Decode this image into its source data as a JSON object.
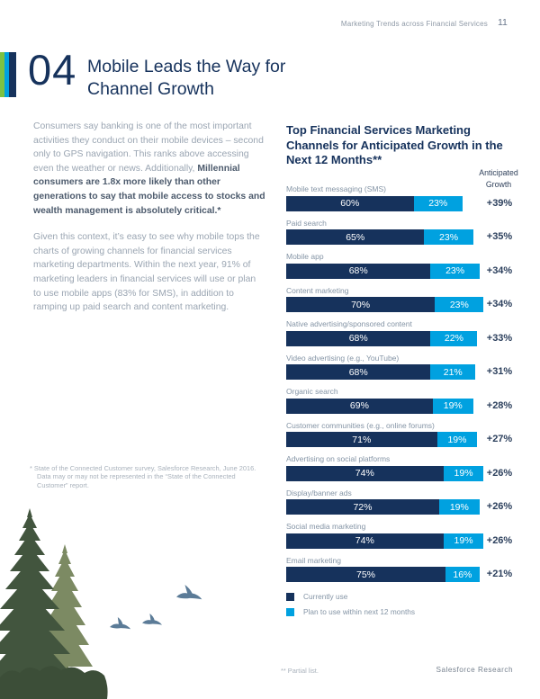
{
  "header": {
    "title": "Marketing Trends across Financial Services",
    "page_number": "11"
  },
  "section": {
    "number": "04",
    "title_line1": "Mobile Leads the Way for",
    "title_line2": "Channel Growth"
  },
  "body": {
    "p1_normal": "Consumers say banking is one of the most important activities they conduct on their mobile devices – second only to GPS navigation. This ranks above accessing even the weather or news. Additionally, ",
    "p1_bold": "Millennial consumers are 1.8x more likely than other generations to say that mobile access to stocks and wealth management is absolutely critical.*",
    "p2": "Given this context, it’s easy to see why mobile tops the charts of growing channels for financial services marketing departments. Within the next year, 91% of marketing leaders in financial services will use or plan to use mobile apps (83% for SMS), in addition to ramping up paid search and content marketing.",
    "footnote": "* State of the Connected Customer survey, Salesforce Research, June 2016. Data  may or may not be represented in the “State of the Connected Customer” report."
  },
  "chart_data": {
    "type": "bar",
    "orientation": "horizontal",
    "stacked": true,
    "title": "Top Financial Services Marketing Channels for Anticipated Growth in the Next 12 Months**",
    "growth_header": "Anticipated\nGrowth",
    "xlim": [
      0,
      100
    ],
    "categories": [
      "Mobile text messaging (SMS)",
      "Paid search",
      "Mobile app",
      "Content marketing",
      "Native advertising/sponsored content",
      "Video advertising (e.g., YouTube)",
      "Organic search",
      "Customer communities (e.g., online forums)",
      "Advertising on social platforms",
      "Display/banner ads",
      "Social media marketing",
      "Email marketing"
    ],
    "series": [
      {
        "name": "Currently use",
        "color": "#16325c",
        "values": [
          60,
          65,
          68,
          70,
          68,
          68,
          69,
          71,
          74,
          72,
          74,
          75
        ]
      },
      {
        "name": "Plan to use within next 12 months",
        "color": "#00a1e0",
        "values": [
          23,
          23,
          23,
          23,
          22,
          21,
          19,
          19,
          19,
          19,
          19,
          16
        ]
      }
    ],
    "growth_labels": [
      "+39%",
      "+35%",
      "+34%",
      "+34%",
      "+33%",
      "+31%",
      "+28%",
      "+27%",
      "+26%",
      "+26%",
      "+26%",
      "+21%"
    ],
    "legend_position": "bottom-left"
  },
  "footer": {
    "note": "** Partial list.",
    "brand": "Salesforce Research"
  },
  "colors": {
    "navy": "#16325c",
    "cyan": "#00a1e0",
    "green": "#7dc242",
    "tree_dark": "#42553e",
    "tree_light": "#7c8a63",
    "tree_base": "#3c4e38",
    "bird": "#5b7b97"
  }
}
